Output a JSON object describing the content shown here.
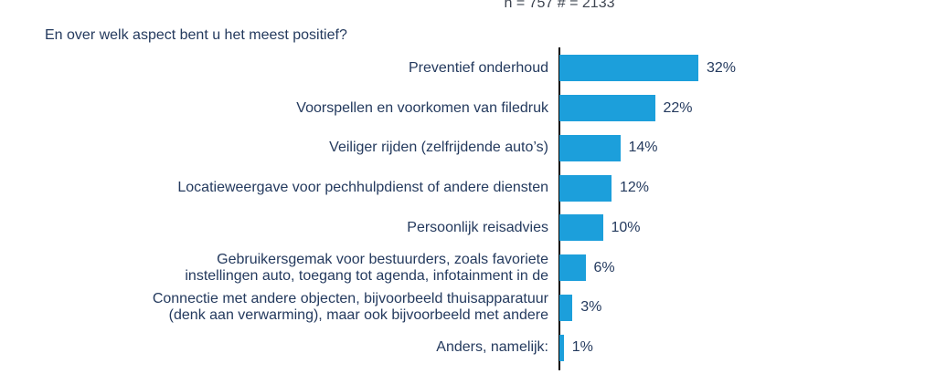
{
  "header": {
    "sample_note": "n = 757 # = 2133"
  },
  "chart_data": {
    "type": "bar",
    "orientation": "horizontal",
    "title": "En over welk aspect bent u het meest positief?",
    "subtitle": "n = 757 # = 2133",
    "categories": [
      "Preventief onderhoud",
      "Voorspellen en voorkomen van filedruk",
      "Veiliger rijden (zelfrijdende auto’s)",
      "Locatieweergave voor pechhulpdienst of andere diensten",
      "Persoonlijk reisadvies",
      "Gebruikersgemak voor bestuurders, zoals favoriete\ninstellingen auto, toegang tot agenda, infotainment in de",
      "Connectie met andere objecten, bijvoorbeeld thuisapparatuur\n(denk aan verwarming), maar ook bijvoorbeeld met andere",
      "Anders, namelijk:"
    ],
    "values": [
      32,
      22,
      14,
      12,
      10,
      6,
      3,
      1
    ],
    "value_labels": [
      "32%",
      "22%",
      "14%",
      "12%",
      "10%",
      "6%",
      "3%",
      "1%"
    ],
    "unit": "%",
    "xlabel": "",
    "ylabel": "",
    "grid": "off",
    "legend": "none",
    "bar_color": "#1c9fdb",
    "label_color": "#243a5e",
    "axis_color": "#000000"
  }
}
